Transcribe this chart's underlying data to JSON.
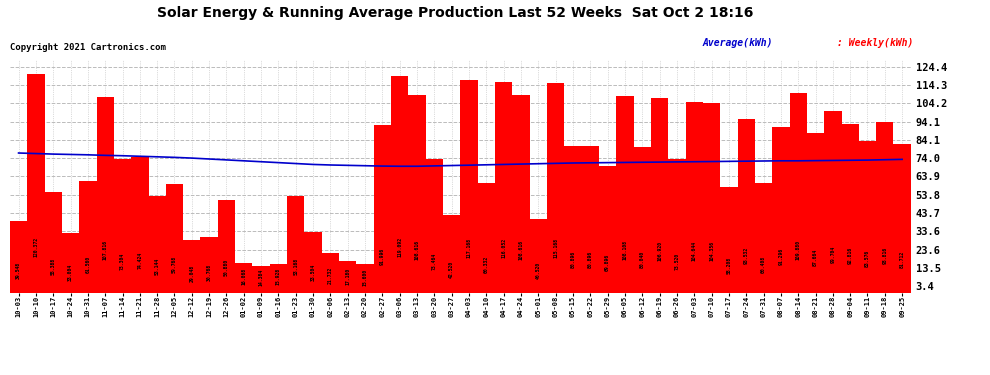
{
  "title": "Solar Energy & Running Average Production Last 52 Weeks  Sat Oct 2 18:16",
  "copyright": "Copyright 2021 Cartronics.com",
  "legend_avg": "Average(kWh)",
  "legend_weekly": "Weekly(kWh)",
  "bar_color": "#ff0000",
  "avg_line_color": "#0000cc",
  "background_color": "#ffffff",
  "plot_bg_color": "#ffffff",
  "grid_color": "#bbbbbb",
  "yticks": [
    3.4,
    13.5,
    23.6,
    33.6,
    43.7,
    53.8,
    63.9,
    74.0,
    84.1,
    94.1,
    104.2,
    114.3,
    124.4
  ],
  "ylim_max": 128.0,
  "categories": [
    "10-03",
    "10-10",
    "10-17",
    "10-24",
    "10-31",
    "11-07",
    "11-14",
    "11-21",
    "11-28",
    "12-05",
    "12-12",
    "12-19",
    "12-26",
    "01-02",
    "01-09",
    "01-16",
    "01-23",
    "01-30",
    "02-06",
    "02-13",
    "02-20",
    "02-27",
    "03-06",
    "03-13",
    "03-20",
    "03-27",
    "04-03",
    "04-10",
    "04-17",
    "04-24",
    "05-01",
    "05-08",
    "05-15",
    "05-22",
    "05-29",
    "06-05",
    "06-12",
    "06-19",
    "06-26",
    "07-03",
    "07-10",
    "07-17",
    "07-24",
    "07-31",
    "08-07",
    "08-14",
    "08-21",
    "08-28",
    "09-04",
    "09-11",
    "09-18",
    "09-25"
  ],
  "weekly_values": [
    39.548,
    120.372,
    55.388,
    33.004,
    61.56,
    107.816,
    73.304,
    74.424,
    53.144,
    59.768,
    29.048,
    30.768,
    50.88,
    16.068,
    14.384,
    15.928,
    53.168,
    33.504,
    21.732,
    17.18,
    15.6,
    91.996,
    119.092,
    108.616,
    73.464,
    42.52,
    117.168,
    60.332,
    116.052,
    108.616,
    40.52,
    115.168,
    80.896,
    80.896,
    69.896,
    108.108,
    80.04,
    106.92,
    73.52,
    104.644,
    104.356,
    58.208,
    95.532,
    60.408,
    91.296,
    109.88,
    87.664,
    99.704,
    92.816,
    83.576,
    93.816,
    81.712
  ],
  "avg_values": [
    76.8,
    76.5,
    76.2,
    76.0,
    75.8,
    75.5,
    75.3,
    75.0,
    74.7,
    74.4,
    74.0,
    73.5,
    73.0,
    72.5,
    72.0,
    71.5,
    71.0,
    70.5,
    70.2,
    70.0,
    69.8,
    69.6,
    69.5,
    69.5,
    69.7,
    69.9,
    70.1,
    70.3,
    70.5,
    70.7,
    70.9,
    71.1,
    71.3,
    71.4,
    71.5,
    71.6,
    71.7,
    71.8,
    71.9,
    72.0,
    72.1,
    72.2,
    72.3,
    72.4,
    72.5,
    72.5,
    72.6,
    72.7,
    72.8,
    72.9,
    73.1,
    73.3
  ]
}
